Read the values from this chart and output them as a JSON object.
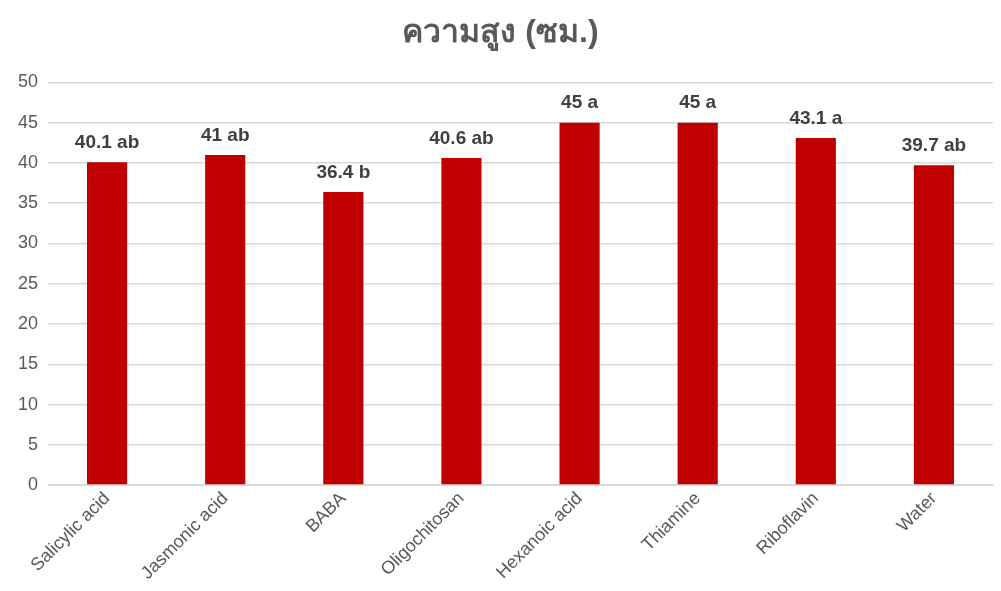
{
  "chart_data": {
    "type": "bar",
    "title": "ความสูง (ซม.)",
    "categories": [
      "Salicylic acid",
      "Jasmonic acid",
      "BABA",
      "Oligochitosan",
      "Hexanoic acid",
      "Thiamine",
      "Riboflavin",
      "Water"
    ],
    "values": [
      40.1,
      41,
      36.4,
      40.6,
      45,
      45,
      43.1,
      39.7
    ],
    "value_labels": [
      "40.1 ab",
      "41 ab",
      "36.4 b",
      "40.6 ab",
      "45 a",
      "45 a",
      "43.1 a",
      "39.7 ab"
    ],
    "color": "#c00000",
    "ylim": [
      0,
      50
    ],
    "yticks": [
      0,
      5,
      10,
      15,
      20,
      25,
      30,
      35,
      40,
      45,
      50
    ],
    "grid": "y",
    "legend": false
  }
}
